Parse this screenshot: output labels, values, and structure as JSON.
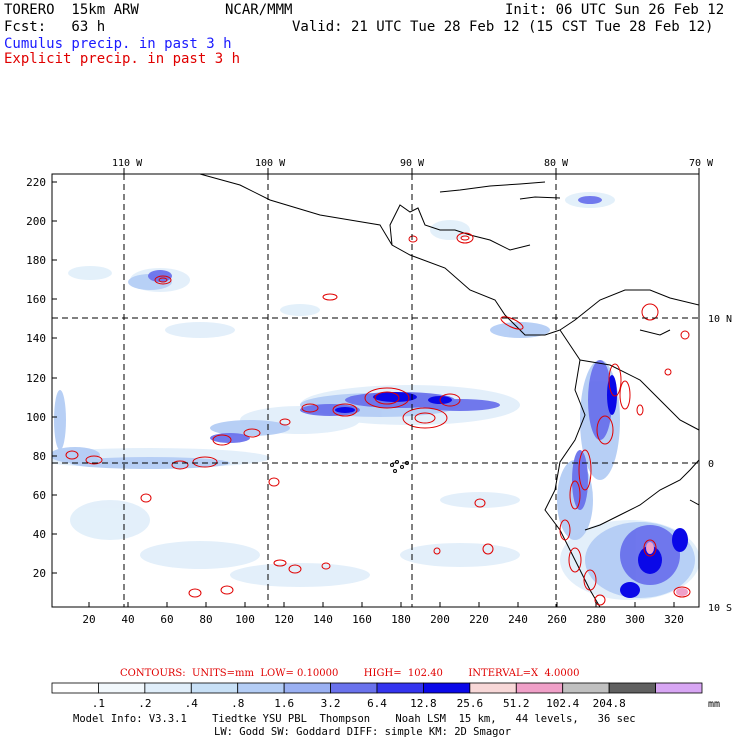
{
  "header": {
    "model": "TORERO  15km ARW",
    "org": "NCAR/MMM",
    "init": "Init: 06 UTC Sun 26 Feb 12",
    "fcst": "Fcst:   63 h",
    "valid": "Valid: 21 UTC Tue 28 Feb 12 (15 CST Tue 28 Feb 12)",
    "field1": "Cumulus precip. in past 3 h",
    "field2": "Explicit precip. in past 3 h",
    "field1_color": "#1a1aff",
    "field2_color": "#e00000"
  },
  "axes": {
    "top_lon_labels": [
      "110 W",
      "100 W",
      "90 W",
      "80 W",
      "70 W"
    ],
    "right_lat_labels": [
      "10 N",
      "0",
      "10 S"
    ],
    "left_ticks": [
      "220",
      "200",
      "180",
      "160",
      "140",
      "120",
      "100",
      "80",
      "60",
      "40",
      "20"
    ],
    "bottom_ticks": [
      "20",
      "40",
      "60",
      "80",
      "100",
      "120",
      "140",
      "160",
      "180",
      "200",
      "220",
      "240",
      "260",
      "280",
      "300",
      "320"
    ]
  },
  "contours": {
    "label": "CONTOURS:  UNITS=mm  LOW= 0.10000        HIGH=  102.40        INTERVAL=X  4.0000",
    "units": "mm",
    "low": 0.1,
    "high": 102.4,
    "interval": "X 4.0000",
    "line_color": "#e00000"
  },
  "colorbar": {
    "labels": [
      ".1",
      ".2",
      ".4",
      ".8",
      "1.6",
      "3.2",
      "6.4",
      "12.8",
      "25.6",
      "51.2",
      "102.4",
      "204.8"
    ],
    "colors": [
      "#ffffff",
      "#f2f8fc",
      "#e0eefa",
      "#c8e0f6",
      "#b4cdf5",
      "#9ab0f2",
      "#6a72ec",
      "#3434ee",
      "#0a08e8",
      "#f8d8d8",
      "#f0a0c8",
      "#c0c0c0",
      "#606060",
      "#d8a6f4"
    ],
    "units": "mm"
  },
  "footer": {
    "line1": "Model Info: V3.3.1    Tiedtke YSU PBL  Thompson    Noah LSM  15 km,   44 levels,   36 sec",
    "line2": "LW: Godd SW: Goddard DIFF: simple KM: 2D Smagor"
  }
}
